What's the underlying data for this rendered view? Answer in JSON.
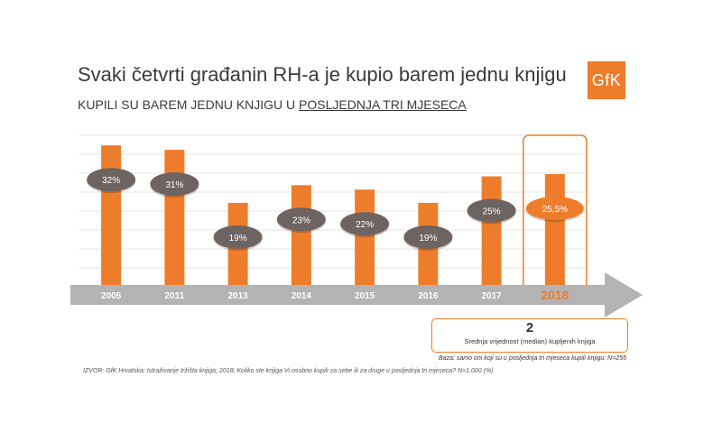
{
  "title": "Svaki četvrti građanin RH-a je kupio barem jednu knjigu",
  "subtitle_prefix": "KUPILI SU BAREM JEDNU KNJIGU U ",
  "subtitle_underlined": "POSLJEDNJA TRI MJESECA",
  "logo_text": "GfK",
  "colors": {
    "bar": "#ee7d2b",
    "bubble": "#6d6361",
    "highlight": "#ee7d2b",
    "arrow": "#b3b3b3"
  },
  "chart_data": {
    "type": "bar",
    "categories": [
      "2005",
      "2011",
      "2013",
      "2014",
      "2015",
      "2016",
      "2017",
      "2018"
    ],
    "values": [
      32,
      31,
      19,
      23,
      22,
      19,
      25,
      25.5
    ],
    "data_labels": [
      "32%",
      "31%",
      "19%",
      "23%",
      "22%",
      "19%",
      "25%",
      "25,5%"
    ],
    "highlight_index": 7,
    "grid": true
  },
  "median": {
    "value": "2",
    "label": "Srednja vrijednost (median) kupljenih knjiga"
  },
  "base_note": "Baza: samo oni koji su u posljednja tri mjeseca kupili knjigu: N=255",
  "source_note": "IZVOR: GfK Hrvatska: Istraživanje tržišta knjiga; 2018; Koliko ste knjiga Vi osobno kupili za sebe ili za druge u posljednja tri mjeseca? N=1.000 (%)"
}
